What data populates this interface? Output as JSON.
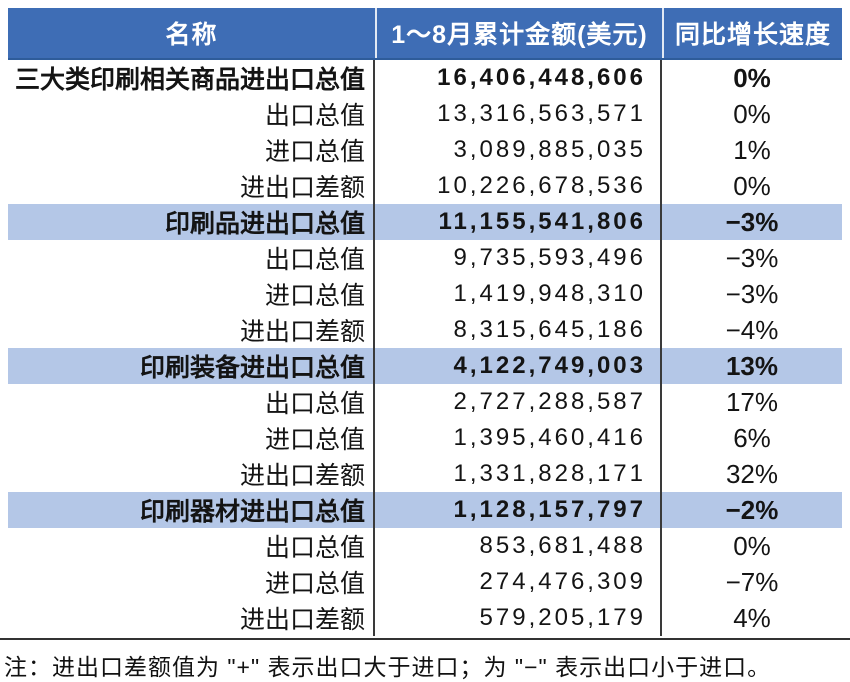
{
  "colors": {
    "header_bg": "#3E6DB5",
    "header_text": "#FFFFFF",
    "highlight_bg": "#B4C7E7",
    "rule": "#333333",
    "divider": "#3A3A3A"
  },
  "table": {
    "headers": [
      "名称",
      "1～8月累计金额(美元)",
      "同比增长速度"
    ],
    "rows": [
      {
        "name": "三大类印刷相关商品进出口总值",
        "amount": "16,406,448,606",
        "growth": "0%",
        "bold": true,
        "highlight": false
      },
      {
        "name": "出口总值",
        "amount": "13,316,563,571",
        "growth": "0%",
        "bold": false,
        "highlight": false
      },
      {
        "name": "进口总值",
        "amount": "3,089,885,035",
        "growth": "1%",
        "bold": false,
        "highlight": false
      },
      {
        "name": "进出口差额",
        "amount": "10,226,678,536",
        "growth": "0%",
        "bold": false,
        "highlight": false
      },
      {
        "name": "印刷品进出口总值",
        "amount": "11,155,541,806",
        "growth": "−3%",
        "bold": true,
        "highlight": true
      },
      {
        "name": "出口总值",
        "amount": "9,735,593,496",
        "growth": "−3%",
        "bold": false,
        "highlight": false
      },
      {
        "name": "进口总值",
        "amount": "1,419,948,310",
        "growth": "−3%",
        "bold": false,
        "highlight": false
      },
      {
        "name": "进出口差额",
        "amount": "8,315,645,186",
        "growth": "−4%",
        "bold": false,
        "highlight": false
      },
      {
        "name": "印刷装备进出口总值",
        "amount": "4,122,749,003",
        "growth": "13%",
        "bold": true,
        "highlight": true
      },
      {
        "name": "出口总值",
        "amount": "2,727,288,587",
        "growth": "17%",
        "bold": false,
        "highlight": false
      },
      {
        "name": "进口总值",
        "amount": "1,395,460,416",
        "growth": "6%",
        "bold": false,
        "highlight": false
      },
      {
        "name": "进出口差额",
        "amount": "1,331,828,171",
        "growth": "32%",
        "bold": false,
        "highlight": false
      },
      {
        "name": "印刷器材进出口总值",
        "amount": "1,128,157,797",
        "growth": "−2%",
        "bold": true,
        "highlight": true
      },
      {
        "name": "出口总值",
        "amount": "853,681,488",
        "growth": "0%",
        "bold": false,
        "highlight": false
      },
      {
        "name": "进口总值",
        "amount": "274,476,309",
        "growth": "−7%",
        "bold": false,
        "highlight": false
      },
      {
        "name": "进出口差额",
        "amount": "579,205,179",
        "growth": "4%",
        "bold": false,
        "highlight": false
      }
    ],
    "note": "注：进出口差额值为 \"+\" 表示出口大于进口；为 \"−\" 表示出口小于进口。"
  },
  "chart_data": {
    "type": "table",
    "title": "",
    "columns": [
      "名称",
      "1～8月累计金额(美元)",
      "同比增长速度"
    ],
    "rows": [
      [
        "三大类印刷相关商品进出口总值",
        16406448606,
        "0%"
      ],
      [
        "出口总值",
        13316563571,
        "0%"
      ],
      [
        "进口总值",
        3089885035,
        "1%"
      ],
      [
        "进出口差额",
        10226678536,
        "0%"
      ],
      [
        "印刷品进出口总值",
        11155541806,
        "-3%"
      ],
      [
        "出口总值",
        9735593496,
        "-3%"
      ],
      [
        "进口总值",
        1419948310,
        "-3%"
      ],
      [
        "进出口差额",
        8315645186,
        "-4%"
      ],
      [
        "印刷装备进出口总值",
        4122749003,
        "13%"
      ],
      [
        "出口总值",
        2727288587,
        "17%"
      ],
      [
        "进口总值",
        1395460416,
        "6%"
      ],
      [
        "进出口差额",
        1331828171,
        "32%"
      ],
      [
        "印刷器材进出口总值",
        1128157797,
        "-2%"
      ],
      [
        "出口总值",
        853681488,
        "0%"
      ],
      [
        "进口总值",
        274476309,
        "-7%"
      ],
      [
        "进出口差额",
        579205179,
        "4%"
      ]
    ],
    "note": "注：进出口差额值为\"+\"表示出口大于进口；为\"−\"表示出口小于进口。"
  }
}
